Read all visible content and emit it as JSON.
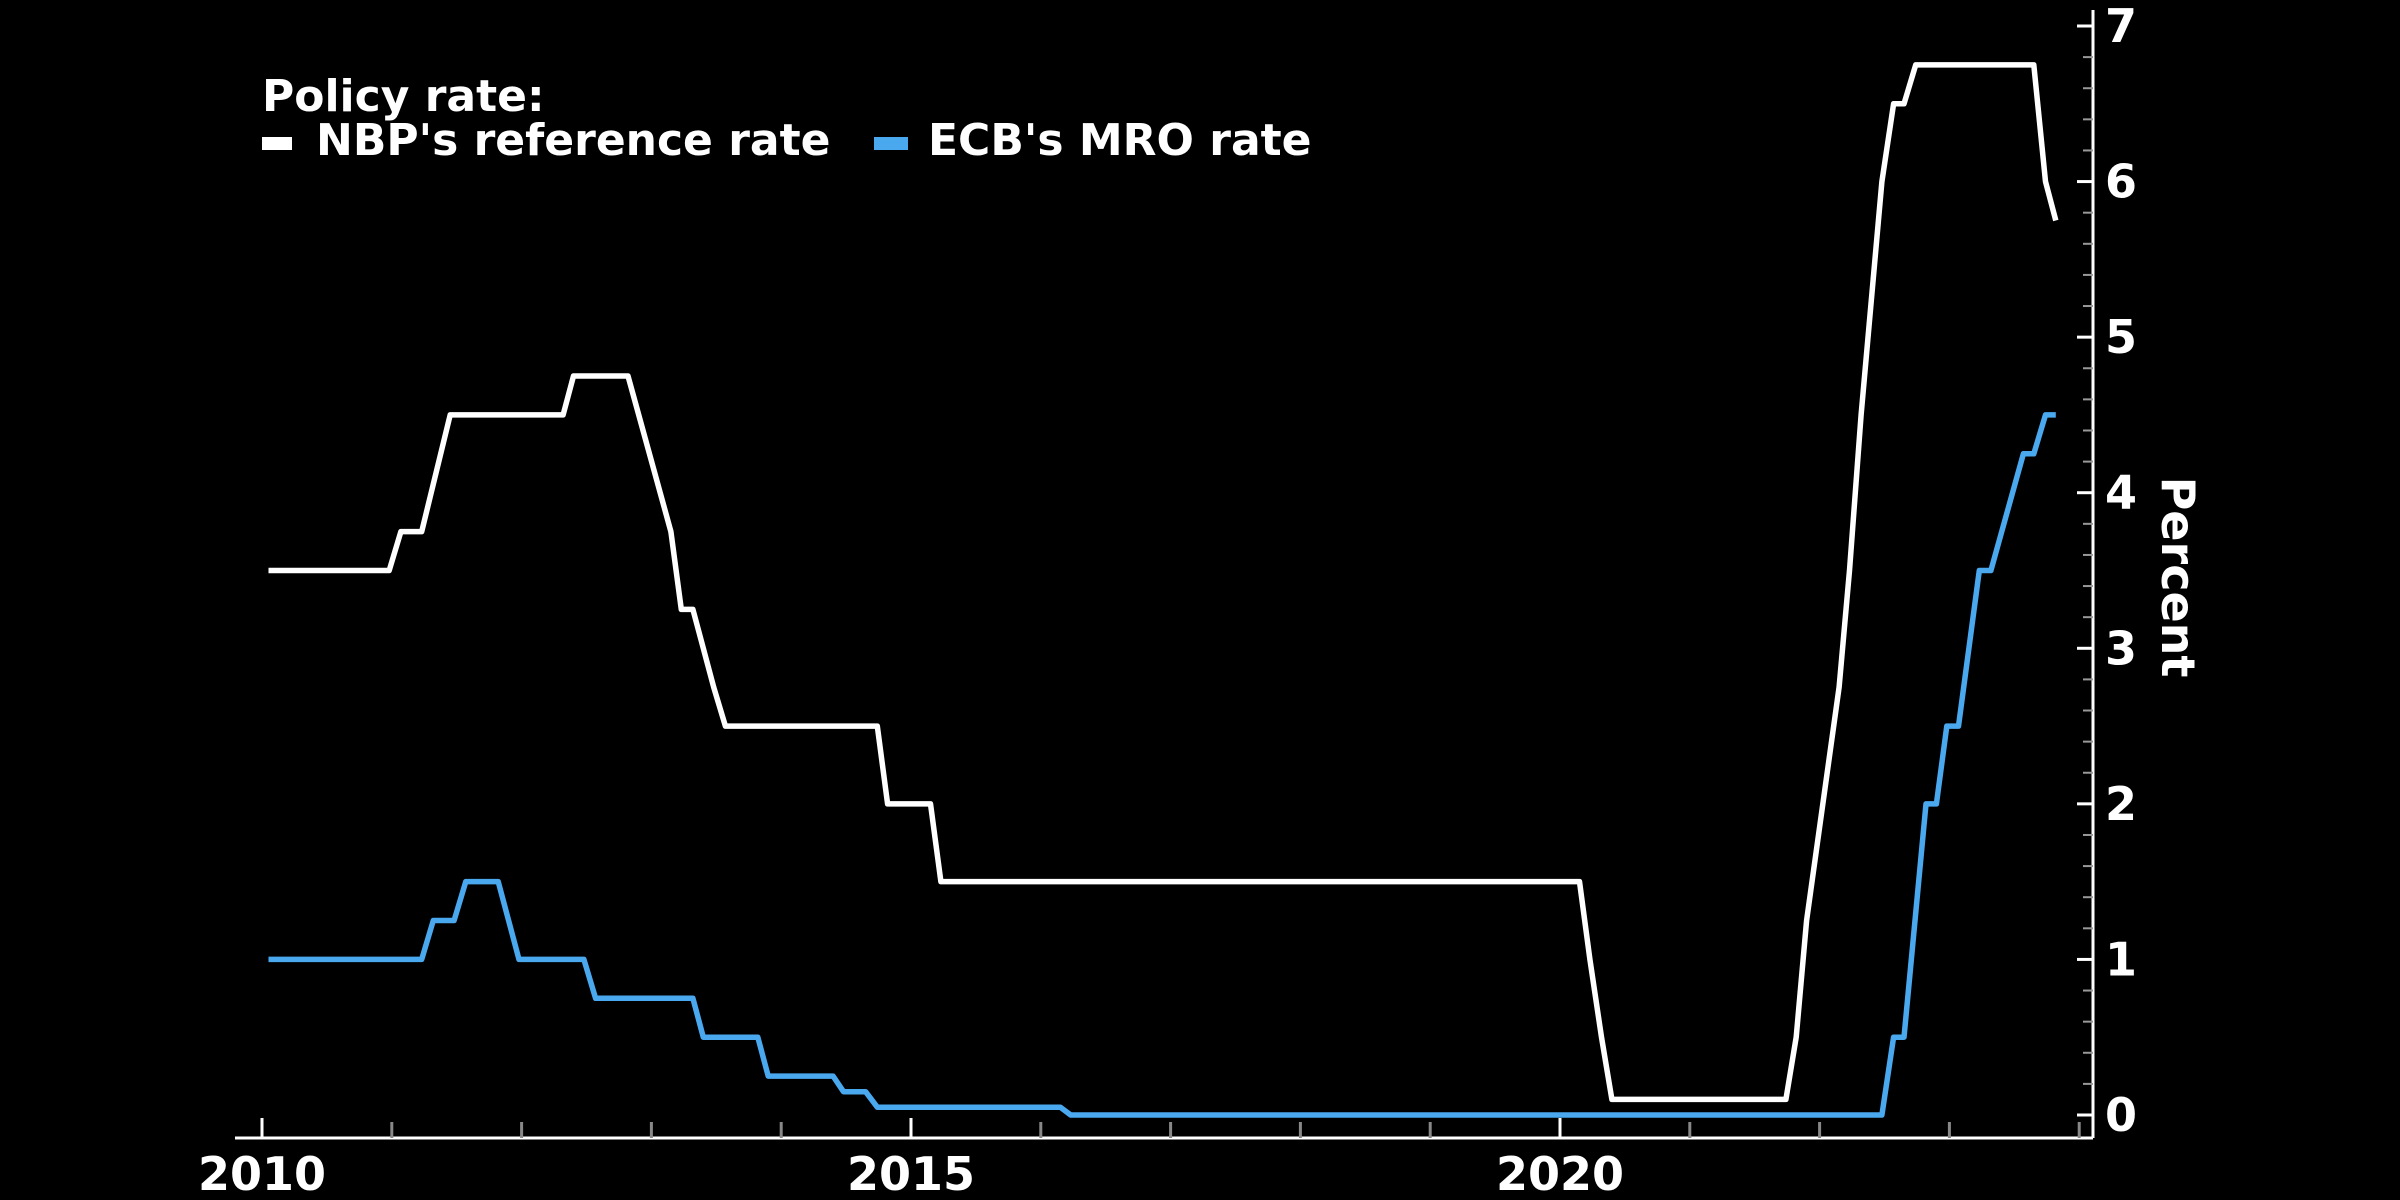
{
  "chart_data": {
    "type": "line",
    "legend": {
      "title": "Policy rate:",
      "entries": [
        {
          "name": "NBP's reference rate",
          "color": "#ffffff"
        },
        {
          "name": "ECB's MRO rate",
          "color": "#4aa8ee"
        }
      ],
      "placement": "top-left"
    },
    "title": "",
    "xlabel": "",
    "ylabel": "Percent",
    "xlim": [
      2010,
      2024.5
    ],
    "ylim": [
      0,
      7
    ],
    "x_ticks": [
      2010,
      2015,
      2020
    ],
    "x_tick_labels": [
      "2010",
      "2015",
      "2020"
    ],
    "y_ticks": [
      0,
      1,
      2,
      3,
      4,
      5,
      6,
      7
    ],
    "y_tick_labels": [
      "0",
      "1",
      "2",
      "3",
      "4",
      "5",
      "6",
      "7"
    ],
    "y_axis_side": "right",
    "grid": false,
    "series": [
      {
        "name": "NBP's reference rate",
        "color": "#ffffff",
        "points": [
          [
            2010.05,
            3.5
          ],
          [
            2010.98,
            3.5
          ],
          [
            2011.07,
            3.75
          ],
          [
            2011.23,
            3.75
          ],
          [
            2011.45,
            4.5
          ],
          [
            2012.32,
            4.5
          ],
          [
            2012.4,
            4.75
          ],
          [
            2012.82,
            4.75
          ],
          [
            2013.15,
            3.75
          ],
          [
            2013.23,
            3.25
          ],
          [
            2013.32,
            3.25
          ],
          [
            2013.48,
            2.75
          ],
          [
            2013.57,
            2.5
          ],
          [
            2014.74,
            2.5
          ],
          [
            2014.82,
            2.0
          ],
          [
            2015.15,
            2.0
          ],
          [
            2015.23,
            1.5
          ],
          [
            2020.15,
            1.5
          ],
          [
            2020.23,
            1.0
          ],
          [
            2020.32,
            0.5
          ],
          [
            2020.4,
            0.1
          ],
          [
            2021.74,
            0.1
          ],
          [
            2021.82,
            0.5
          ],
          [
            2021.9,
            1.25
          ],
          [
            2022.15,
            2.75
          ],
          [
            2022.23,
            3.5
          ],
          [
            2022.32,
            4.5
          ],
          [
            2022.48,
            6.0
          ],
          [
            2022.57,
            6.5
          ],
          [
            2022.65,
            6.5
          ],
          [
            2022.74,
            6.75
          ],
          [
            2023.65,
            6.75
          ],
          [
            2023.74,
            6.0
          ],
          [
            2023.82,
            5.75
          ]
        ]
      },
      {
        "name": "ECB's MRO rate",
        "color": "#4aa8ee",
        "points": [
          [
            2010.05,
            1.0
          ],
          [
            2011.23,
            1.0
          ],
          [
            2011.32,
            1.25
          ],
          [
            2011.48,
            1.25
          ],
          [
            2011.57,
            1.5
          ],
          [
            2011.82,
            1.5
          ],
          [
            2011.98,
            1.0
          ],
          [
            2012.48,
            1.0
          ],
          [
            2012.57,
            0.75
          ],
          [
            2013.32,
            0.75
          ],
          [
            2013.4,
            0.5
          ],
          [
            2013.82,
            0.5
          ],
          [
            2013.9,
            0.25
          ],
          [
            2014.4,
            0.25
          ],
          [
            2014.48,
            0.15
          ],
          [
            2014.65,
            0.15
          ],
          [
            2014.74,
            0.05
          ],
          [
            2016.15,
            0.05
          ],
          [
            2016.23,
            0.0
          ],
          [
            2022.48,
            0.0
          ],
          [
            2022.57,
            0.5
          ],
          [
            2022.65,
            0.5
          ],
          [
            2022.82,
            2.0
          ],
          [
            2022.9,
            2.0
          ],
          [
            2022.98,
            2.5
          ],
          [
            2023.07,
            2.5
          ],
          [
            2023.23,
            3.5
          ],
          [
            2023.32,
            3.5
          ],
          [
            2023.57,
            4.25
          ],
          [
            2023.65,
            4.25
          ],
          [
            2023.74,
            4.5
          ],
          [
            2023.82,
            4.5
          ]
        ]
      }
    ]
  }
}
